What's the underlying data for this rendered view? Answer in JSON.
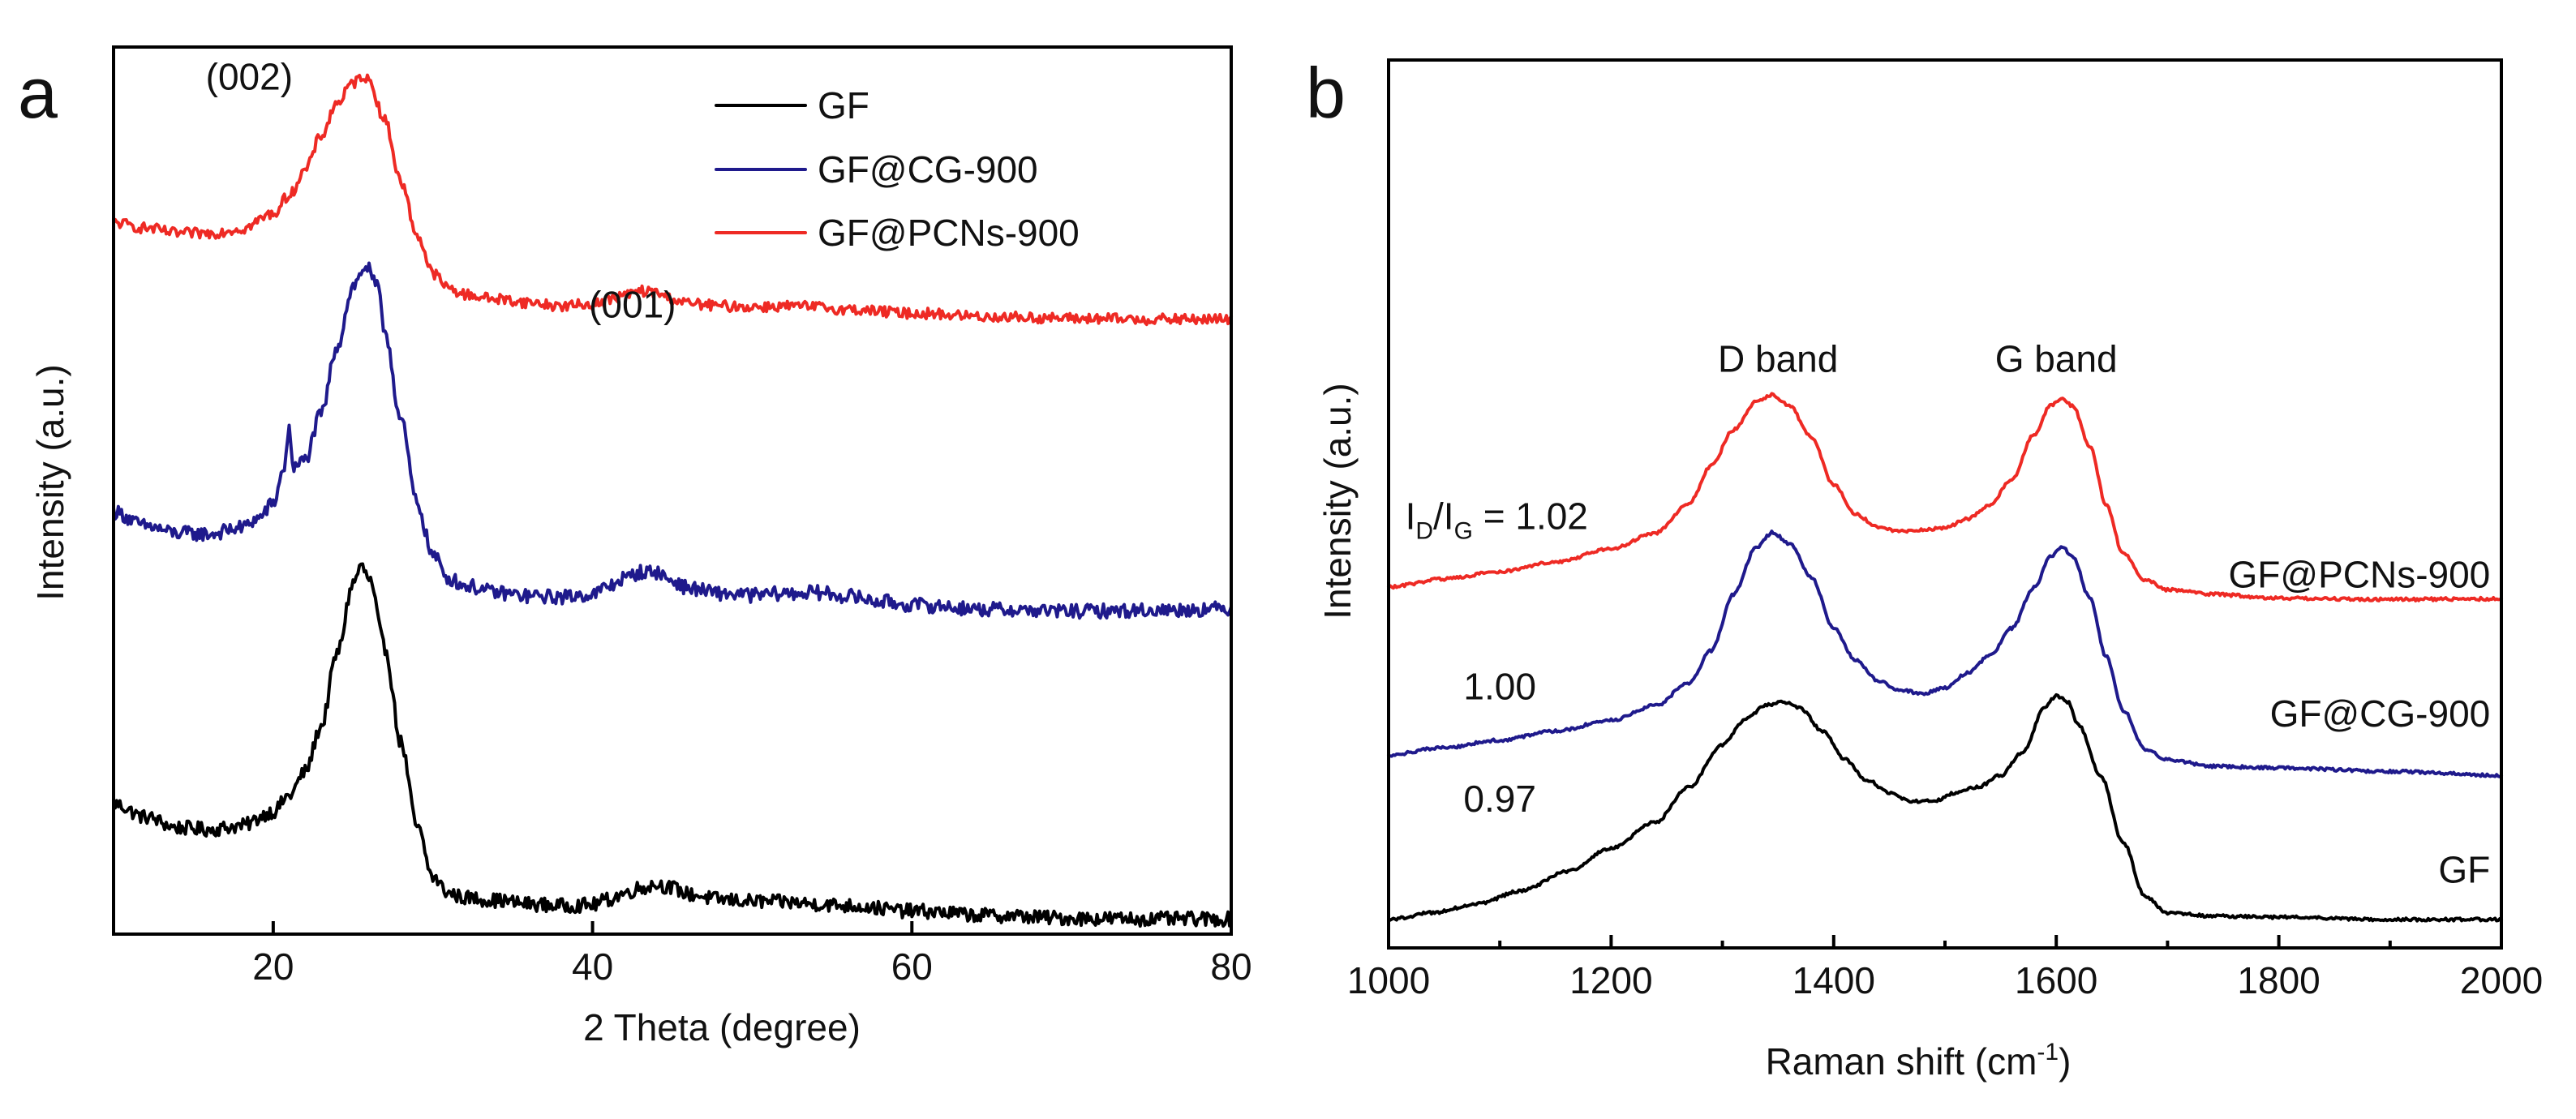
{
  "colors": {
    "GF": "#000000",
    "GF@CG-900": "#1f1a8c",
    "GF@PCNs-900": "#ee2a24",
    "axis": "#000000"
  },
  "chart_data": [
    {
      "id": "a",
      "type": "line",
      "panel_label": "a",
      "title": "",
      "xlabel": "2 Theta  (degree)",
      "ylabel": "Intensity (a.u.)",
      "xlim": [
        10,
        80
      ],
      "ylim": [
        0,
        100
      ],
      "x_ticks": [
        20,
        40,
        60,
        80
      ],
      "x_tick_labels": [
        "20",
        "40",
        "60",
        "80"
      ],
      "legend": {
        "placement": "top-right",
        "entries": [
          "GF",
          "GF@CG-900",
          "GF@PCNs-900"
        ]
      },
      "annotations": [
        {
          "text": "(002)",
          "x": 18.5,
          "y": 95.2
        },
        {
          "text": "(001)",
          "x": 42.5,
          "y": 69.5
        }
      ],
      "series": [
        {
          "name": "GF",
          "noise": 0.8,
          "points": [
            [
              10,
              14.7
            ],
            [
              12,
              13.2
            ],
            [
              14,
              12.0
            ],
            [
              16,
              11.8
            ],
            [
              18,
              12.2
            ],
            [
              20,
              13.8
            ],
            [
              21,
              15.6
            ],
            [
              22,
              18.3
            ],
            [
              23,
              23.4
            ],
            [
              24,
              31.6
            ],
            [
              25,
              39.5
            ],
            [
              25.5,
              41.5
            ],
            [
              26,
              40.0
            ],
            [
              27,
              32.3
            ],
            [
              28,
              21.6
            ],
            [
              29,
              12.1
            ],
            [
              30,
              6.4
            ],
            [
              31,
              4.6
            ],
            [
              32,
              4.1
            ],
            [
              34,
              3.8
            ],
            [
              36,
              3.4
            ],
            [
              38,
              3.2
            ],
            [
              40,
              3.3
            ],
            [
              41,
              3.9
            ],
            [
              42,
              4.6
            ],
            [
              43,
              5.2
            ],
            [
              44,
              5.6
            ],
            [
              45,
              5.2
            ],
            [
              46,
              4.5
            ],
            [
              48,
              3.9
            ],
            [
              50,
              3.7
            ],
            [
              52,
              3.6
            ],
            [
              54,
              3.4
            ],
            [
              56,
              3.2
            ],
            [
              60,
              2.6
            ],
            [
              65,
              2.1
            ],
            [
              70,
              1.8
            ],
            [
              75,
              1.7
            ],
            [
              80,
              1.7
            ]
          ]
        },
        {
          "name": "GF@CG-900",
          "noise": 0.8,
          "points": [
            [
              10,
              47.6
            ],
            [
              12,
              46.0
            ],
            [
              14,
              45.2
            ],
            [
              16,
              45.1
            ],
            [
              18,
              45.8
            ],
            [
              19,
              46.8
            ],
            [
              20,
              48.5
            ],
            [
              20.6,
              52.0
            ],
            [
              21,
              56.7
            ],
            [
              21.3,
              52.5
            ],
            [
              22,
              53.5
            ],
            [
              23,
              58.6
            ],
            [
              24,
              66.3
            ],
            [
              25,
              73.0
            ],
            [
              25.8,
              75.3
            ],
            [
              26.5,
              73.0
            ],
            [
              27,
              68.0
            ],
            [
              28,
              57.9
            ],
            [
              29,
              48.6
            ],
            [
              30,
              42.7
            ],
            [
              31,
              40.1
            ],
            [
              32,
              39.3
            ],
            [
              34,
              38.5
            ],
            [
              36,
              38.1
            ],
            [
              38,
              38.0
            ],
            [
              40,
              38.3
            ],
            [
              41,
              39.2
            ],
            [
              42,
              40.1
            ],
            [
              43,
              40.8
            ],
            [
              44,
              40.8
            ],
            [
              45,
              39.8
            ],
            [
              46,
              39.0
            ],
            [
              48,
              38.4
            ],
            [
              50,
              38.2
            ],
            [
              52,
              38.4
            ],
            [
              54,
              38.5
            ],
            [
              56,
              38.1
            ],
            [
              58,
              37.5
            ],
            [
              60,
              37.1
            ],
            [
              65,
              36.6
            ],
            [
              70,
              36.4
            ],
            [
              75,
              36.5
            ],
            [
              80,
              36.7
            ]
          ]
        },
        {
          "name": "GF@PCNs-900",
          "noise": 0.6,
          "points": [
            [
              10,
              80.2
            ],
            [
              12,
              79.6
            ],
            [
              14,
              79.0
            ],
            [
              16,
              79.0
            ],
            [
              18,
              79.5
            ],
            [
              20,
              81.2
            ],
            [
              21,
              83.3
            ],
            [
              22,
              86.1
            ],
            [
              23,
              90.0
            ],
            [
              24,
              93.7
            ],
            [
              25,
              95.9
            ],
            [
              25.6,
              96.8
            ],
            [
              26,
              96.2
            ],
            [
              27,
              91.7
            ],
            [
              28,
              84.8
            ],
            [
              29,
              78.9
            ],
            [
              30,
              74.5
            ],
            [
              31,
              72.8
            ],
            [
              32,
              72.1
            ],
            [
              34,
              71.6
            ],
            [
              36,
              71.2
            ],
            [
              38,
              70.8
            ],
            [
              40,
              71.0
            ],
            [
              41,
              71.5
            ],
            [
              42,
              72.0
            ],
            [
              43,
              72.5
            ],
            [
              44,
              72.3
            ],
            [
              45,
              71.6
            ],
            [
              46,
              71.1
            ],
            [
              48,
              70.8
            ],
            [
              50,
              70.7
            ],
            [
              52,
              70.8
            ],
            [
              54,
              70.7
            ],
            [
              56,
              70.4
            ],
            [
              60,
              70.0
            ],
            [
              65,
              69.6
            ],
            [
              70,
              69.4
            ],
            [
              75,
              69.3
            ],
            [
              80,
              69.3
            ]
          ]
        }
      ]
    },
    {
      "id": "b",
      "type": "line",
      "panel_label": "b",
      "title": "",
      "xlabel": "Raman shift (cm",
      "xlabel_sup": "-1",
      "xlabel_end": ")",
      "ylabel": "Intensity (a.u.)",
      "xlim": [
        1000,
        2000
      ],
      "ylim": [
        0,
        100
      ],
      "x_ticks": [
        1000,
        1200,
        1400,
        1600,
        1800,
        2000
      ],
      "x_tick_labels": [
        "1000",
        "1200",
        "1400",
        "1600",
        "1800",
        "2000"
      ],
      "band_labels": [
        {
          "text": "D band",
          "x": 1350,
          "y": 93.5
        },
        {
          "text": "G band",
          "x": 1600,
          "y": 93.5
        }
      ],
      "ratio_label": {
        "main": "I",
        "sub_d": "D",
        "slash": "/I",
        "sub_g": "G",
        "value": " = 1.02",
        "x": 1015,
        "y": 65.8
      },
      "value_labels": [
        {
          "text": "1.00",
          "x": 1100,
          "y": 35.8
        },
        {
          "text": "0.97",
          "x": 1100,
          "y": 16.0
        }
      ],
      "series": [
        {
          "name": "GF",
          "label_text": "GF",
          "label_pos": {
            "x": 1990,
            "y": 3.5
          },
          "noise": 0.25,
          "points": [
            [
              1000,
              -3.0
            ],
            [
              1040,
              -1.8
            ],
            [
              1080,
              -0.2
            ],
            [
              1120,
              2.1
            ],
            [
              1160,
              5.4
            ],
            [
              1200,
              9.6
            ],
            [
              1240,
              14.2
            ],
            [
              1270,
              20.4
            ],
            [
              1300,
              27.8
            ],
            [
              1320,
              32.2
            ],
            [
              1340,
              34.8
            ],
            [
              1355,
              35.3
            ],
            [
              1370,
              34.2
            ],
            [
              1390,
              30.2
            ],
            [
              1410,
              25.2
            ],
            [
              1430,
              21.6
            ],
            [
              1450,
              19.3
            ],
            [
              1470,
              17.8
            ],
            [
              1490,
              17.9
            ],
            [
              1510,
              19.3
            ],
            [
              1530,
              20.4
            ],
            [
              1550,
              22.4
            ],
            [
              1570,
              26.5
            ],
            [
              1590,
              34.4
            ],
            [
              1600,
              36.5
            ],
            [
              1610,
              35.4
            ],
            [
              1620,
              31.3
            ],
            [
              1640,
              22.3
            ],
            [
              1660,
              10.6
            ],
            [
              1680,
              1.0
            ],
            [
              1700,
              -1.8
            ],
            [
              1740,
              -2.4
            ],
            [
              1800,
              -2.6
            ],
            [
              1900,
              -3.0
            ],
            [
              2000,
              -3.0
            ]
          ]
        },
        {
          "name": "GF@CG-900",
          "label_text": "GF@CG-900",
          "label_pos": {
            "x": 1990,
            "y": 31.0
          },
          "noise": 0.25,
          "points": [
            [
              1000,
              26.0
            ],
            [
              1050,
              27.3
            ],
            [
              1100,
              28.6
            ],
            [
              1150,
              30.2
            ],
            [
              1200,
              32.1
            ],
            [
              1240,
              34.7
            ],
            [
              1270,
              38.7
            ],
            [
              1290,
              44.4
            ],
            [
              1310,
              54.3
            ],
            [
              1330,
              62.4
            ],
            [
              1345,
              65.2
            ],
            [
              1360,
              63.3
            ],
            [
              1380,
              57.3
            ],
            [
              1400,
              48.3
            ],
            [
              1420,
              42.7
            ],
            [
              1440,
              39.1
            ],
            [
              1460,
              37.4
            ],
            [
              1480,
              36.8
            ],
            [
              1500,
              37.8
            ],
            [
              1520,
              40.4
            ],
            [
              1540,
              43.4
            ],
            [
              1560,
              48.3
            ],
            [
              1580,
              55.5
            ],
            [
              1595,
              61.0
            ],
            [
              1605,
              62.7
            ],
            [
              1615,
              60.8
            ],
            [
              1630,
              53.7
            ],
            [
              1645,
              43.3
            ],
            [
              1660,
              33.9
            ],
            [
              1680,
              27.0
            ],
            [
              1700,
              25.2
            ],
            [
              1740,
              24.0
            ],
            [
              1800,
              23.7
            ],
            [
              1900,
              23.1
            ],
            [
              2000,
              22.4
            ]
          ]
        },
        {
          "name": "GF@PCNs-900",
          "label_text": "GF@PCNs-900",
          "label_pos": {
            "x": 1990,
            "y": 55.5
          },
          "noise": 0.25,
          "points": [
            [
              1000,
              55.6
            ],
            [
              1050,
              57.0
            ],
            [
              1100,
              58.3
            ],
            [
              1150,
              60.0
            ],
            [
              1200,
              62.3
            ],
            [
              1240,
              65.1
            ],
            [
              1270,
              70.3
            ],
            [
              1290,
              77.0
            ],
            [
              1310,
              83.3
            ],
            [
              1330,
              88.2
            ],
            [
              1345,
              89.5
            ],
            [
              1360,
              87.5
            ],
            [
              1380,
              82.0
            ],
            [
              1400,
              73.6
            ],
            [
              1420,
              68.4
            ],
            [
              1440,
              66.1
            ],
            [
              1460,
              65.4
            ],
            [
              1480,
              65.6
            ],
            [
              1500,
              66.0
            ],
            [
              1520,
              67.6
            ],
            [
              1540,
              70.0
            ],
            [
              1560,
              74.5
            ],
            [
              1580,
              82.4
            ],
            [
              1595,
              87.6
            ],
            [
              1605,
              88.8
            ],
            [
              1615,
              87.4
            ],
            [
              1630,
              80.4
            ],
            [
              1645,
              70.1
            ],
            [
              1660,
              61.5
            ],
            [
              1680,
              56.8
            ],
            [
              1700,
              55.1
            ],
            [
              1740,
              54.3
            ],
            [
              1800,
              53.6
            ],
            [
              1900,
              53.4
            ],
            [
              2000,
              53.5
            ]
          ]
        }
      ]
    }
  ]
}
